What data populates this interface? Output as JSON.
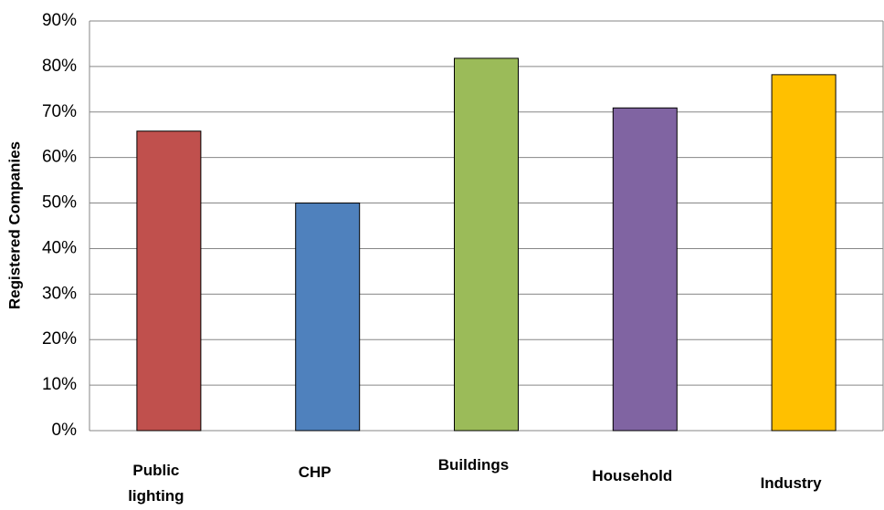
{
  "chart_data": {
    "type": "bar",
    "y_label": "Registered Companies",
    "categories": [
      "Public lighting",
      "CHP",
      "Buildings",
      "Household",
      "Industry"
    ],
    "values": [
      65.8,
      50,
      81.8,
      70.9,
      78.2
    ],
    "colors": [
      "#c0504d",
      "#4f81bd",
      "#9bbb59",
      "#8064a2",
      "#ffc000"
    ],
    "ylim": [
      0,
      90
    ],
    "yticks": [
      {
        "value": 0,
        "label": "0%"
      },
      {
        "value": 10,
        "label": "10%"
      },
      {
        "value": 20,
        "label": "20%"
      },
      {
        "value": 30,
        "label": "30%"
      },
      {
        "value": 40,
        "label": "40%"
      },
      {
        "value": 50,
        "label": "50%"
      },
      {
        "value": 60,
        "label": "60%"
      },
      {
        "value": 70,
        "label": "70%"
      },
      {
        "value": 80,
        "label": "80%"
      },
      {
        "value": 90,
        "label": "90%"
      }
    ],
    "grid": true
  }
}
